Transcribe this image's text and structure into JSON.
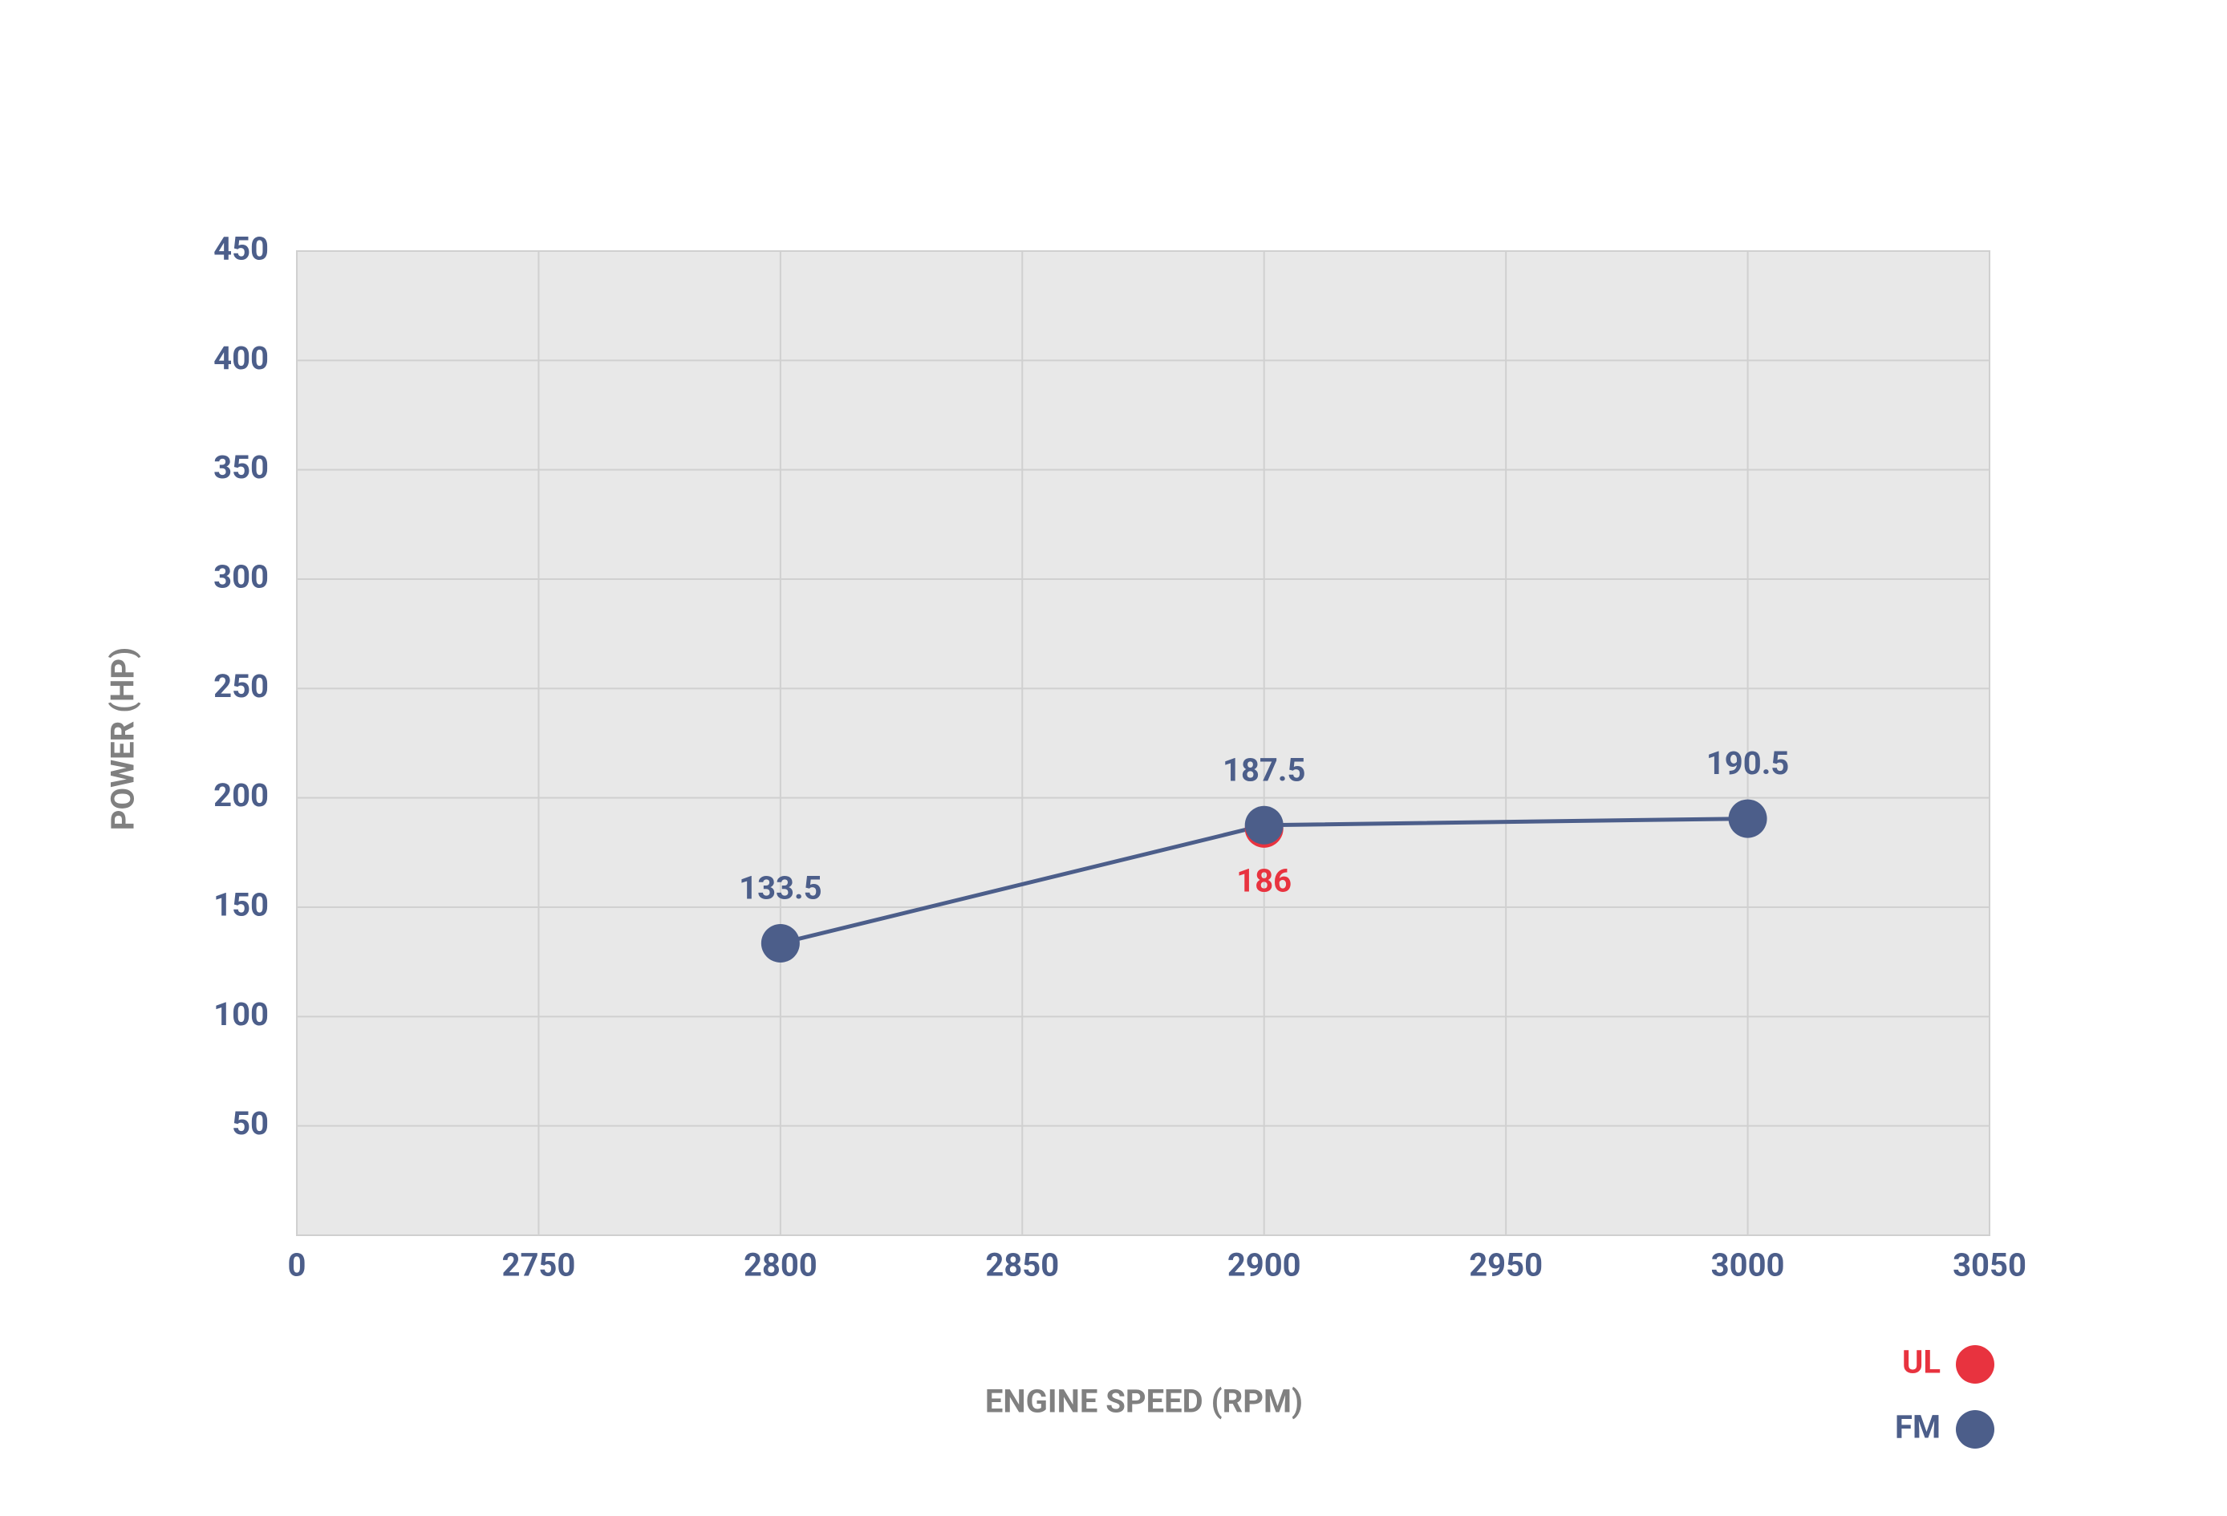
{
  "chart_data": {
    "type": "line",
    "x_label": "ENGINE SPEED (RPM)",
    "y_label": "POWER (HP)",
    "x": [
      2800,
      2900,
      3000
    ],
    "series": [
      {
        "name": "UL",
        "color": "#e8333f",
        "values": [
          null,
          186,
          null
        ]
      },
      {
        "name": "FM",
        "color": "#4c5e8a",
        "values": [
          133.5,
          187.5,
          190.5
        ]
      }
    ],
    "xlim": [
      2700,
      3050
    ],
    "xticks": [
      {
        "value": 2700,
        "label": "0"
      },
      2750,
      2800,
      2850,
      2900,
      2950,
      3000,
      3050
    ],
    "ylim": [
      0,
      450
    ],
    "yticks": [
      50,
      100,
      150,
      200,
      250,
      300,
      350,
      400,
      450
    ],
    "grid": true,
    "legend": "bottom-right"
  }
}
